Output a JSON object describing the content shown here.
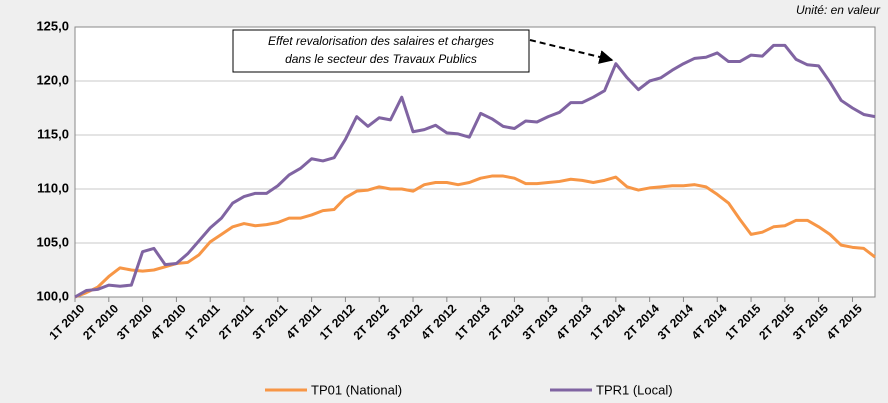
{
  "chart_data": {
    "type": "line",
    "note": "Unité: en valeur",
    "annotation": [
      "Effet revalorisation des salaires et charges",
      "dans le secteur des Travaux Publics"
    ],
    "categories": [
      "1T 2010",
      null,
      null,
      "2T 2010",
      null,
      null,
      "3T 2010",
      null,
      null,
      "4T 2010",
      null,
      null,
      "1T 2011",
      null,
      null,
      "2T 2011",
      null,
      null,
      "3T 2011",
      null,
      null,
      "4T 2011",
      null,
      null,
      "1T 2012",
      null,
      null,
      "2T 2012",
      null,
      null,
      "3T 2012",
      null,
      null,
      "4T 2012",
      null,
      null,
      "1T 2013",
      null,
      null,
      "2T 2013",
      null,
      null,
      "3T 2013",
      null,
      null,
      "4T 2013",
      null,
      null,
      "1T 2014",
      null,
      null,
      "2T 2014",
      null,
      null,
      "3T 2014",
      null,
      null,
      "4T 2014",
      null,
      null,
      "1T 2015",
      null,
      null,
      "2T 2015",
      null,
      null,
      "3T 2015",
      null,
      null,
      "4T 2015",
      null,
      null
    ],
    "series": [
      {
        "name": "TP01 (National)",
        "color": "#f79646",
        "values": [
          100.0,
          100.4,
          100.9,
          101.9,
          102.7,
          102.5,
          102.4,
          102.5,
          102.8,
          103.1,
          103.2,
          103.9,
          105.1,
          105.8,
          106.5,
          106.8,
          106.6,
          106.7,
          106.9,
          107.3,
          107.3,
          107.6,
          108.0,
          108.1,
          109.2,
          109.8,
          109.9,
          110.2,
          110.0,
          110.0,
          109.8,
          110.4,
          110.6,
          110.6,
          110.4,
          110.6,
          111.0,
          111.2,
          111.2,
          111.0,
          110.5,
          110.5,
          110.6,
          110.7,
          110.9,
          110.8,
          110.6,
          110.8,
          111.1,
          110.2,
          109.9,
          110.1,
          110.2,
          110.3,
          110.3,
          110.4,
          110.2,
          109.5,
          108.7,
          107.2,
          105.8,
          106.0,
          106.5,
          106.6,
          107.1,
          107.1,
          106.5,
          105.8,
          104.8,
          104.6,
          104.5,
          103.7
        ]
      },
      {
        "name": "TPR1 (Local)",
        "color": "#8064a2",
        "values": [
          100.0,
          100.6,
          100.7,
          101.1,
          101.0,
          101.1,
          104.2,
          104.5,
          103.0,
          103.1,
          104.0,
          105.2,
          106.4,
          107.3,
          108.7,
          109.3,
          109.6,
          109.6,
          110.3,
          111.3,
          111.9,
          112.8,
          112.6,
          112.9,
          114.6,
          116.7,
          115.8,
          116.6,
          116.4,
          118.5,
          115.3,
          115.5,
          115.9,
          115.2,
          115.1,
          114.8,
          117.0,
          116.5,
          115.8,
          115.6,
          116.3,
          116.2,
          116.7,
          117.1,
          118.0,
          118.0,
          118.5,
          119.1,
          121.6,
          120.3,
          119.2,
          120.0,
          120.3,
          121.0,
          121.6,
          122.1,
          122.2,
          122.6,
          121.8,
          121.8,
          122.4,
          122.3,
          123.3,
          123.3,
          122.0,
          121.5,
          121.4,
          119.9,
          118.2,
          117.5,
          116.9,
          116.7
        ]
      }
    ],
    "ylim": [
      100,
      125
    ],
    "yticks": [
      {
        "value": 100,
        "label": "100,0"
      },
      {
        "value": 105,
        "label": "105,0"
      },
      {
        "value": 110,
        "label": "110,0"
      },
      {
        "value": 115,
        "label": "115,0"
      },
      {
        "value": 120,
        "label": "120,0"
      },
      {
        "value": 125,
        "label": "125,0"
      }
    ],
    "grid": true
  }
}
